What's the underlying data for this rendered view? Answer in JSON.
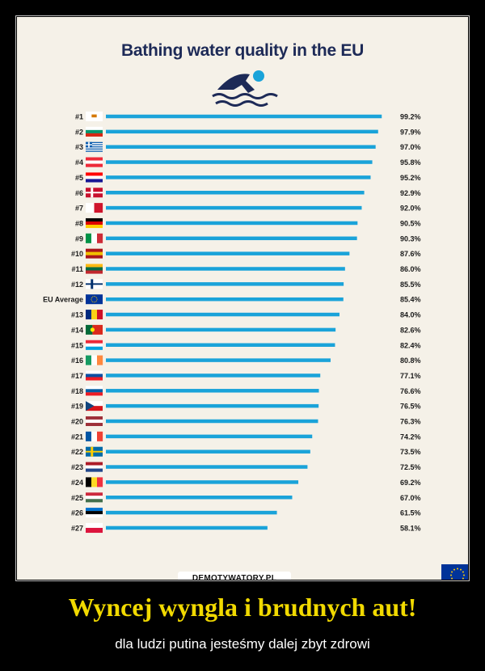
{
  "chart_data": {
    "type": "bar",
    "orientation": "horizontal",
    "title": "Bathing water quality in the EU",
    "xlabel": "",
    "ylabel": "",
    "xlim": [
      0,
      100
    ],
    "categories": [
      "#1",
      "#2",
      "#3",
      "#4",
      "#5",
      "#6",
      "#7",
      "#8",
      "#9",
      "#10",
      "#11",
      "#12",
      "EU Average",
      "#13",
      "#14",
      "#15",
      "#16",
      "#17",
      "#18",
      "#19",
      "#20",
      "#21",
      "#22",
      "#23",
      "#24",
      "#25",
      "#26",
      "#27"
    ],
    "countries": [
      "Cyprus",
      "Bulgaria",
      "Greece",
      "Austria",
      "Croatia",
      "Denmark",
      "Malta",
      "Germany",
      "Italy",
      "Spain",
      "Lithuania",
      "Finland",
      "European Union",
      "Romania",
      "Portugal",
      "Luxembourg",
      "Ireland",
      "Slovakia",
      "Slovenia",
      "Czechia",
      "Latvia",
      "France",
      "Sweden",
      "Netherlands",
      "Belgium",
      "Hungary",
      "Estonia",
      "Poland"
    ],
    "values": [
      99.2,
      97.9,
      97.0,
      95.8,
      95.2,
      92.9,
      92.0,
      90.5,
      90.3,
      87.6,
      86.0,
      85.5,
      85.4,
      84.0,
      82.6,
      82.4,
      80.8,
      77.1,
      76.6,
      76.5,
      76.3,
      74.2,
      73.5,
      72.5,
      69.2,
      67.0,
      61.5,
      58.1
    ],
    "value_labels": [
      "99.2%",
      "97.9%",
      "97.0%",
      "95.8%",
      "95.2%",
      "92.9%",
      "92.0%",
      "90.5%",
      "90.3%",
      "87.6%",
      "86.0%",
      "85.5%",
      "85.4%",
      "84.0%",
      "82.6%",
      "82.4%",
      "80.8%",
      "77.1%",
      "76.6%",
      "76.5%",
      "76.3%",
      "74.2%",
      "73.5%",
      "72.5%",
      "69.2%",
      "67.0%",
      "61.5%",
      "58.1%"
    ],
    "bar_color": "#1aa3d9",
    "grid": false,
    "legend": "none"
  },
  "icons": {
    "swimmer": "swimmer-icon",
    "eu_flag": "eu-flag-icon"
  },
  "colors": {
    "background": "#f5f1e8",
    "title": "#1d2a57",
    "headline": "#f1d900"
  },
  "watermark": "DEMOTYWATORY.PL",
  "headline": "Wyncej wyngla i brudnych aut!",
  "subline": "dla ludzi putina jesteśmy dalej zbyt zdrowi"
}
